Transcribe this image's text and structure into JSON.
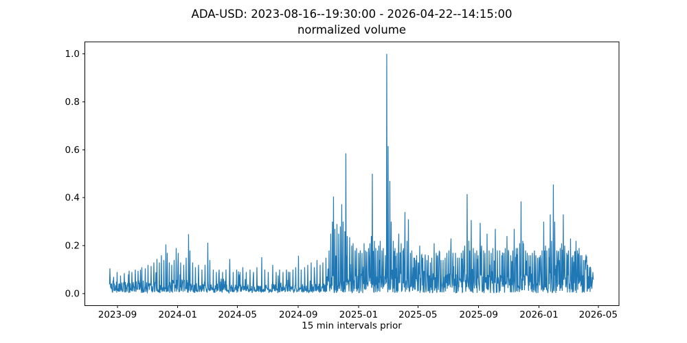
{
  "chart_data": {
    "type": "line",
    "title_line1": "ADA-USD: 2023-08-16--19:30:00 - 2026-04-22--14:15:00",
    "title_line2": "normalized volume",
    "xlabel": "15 min intervals prior",
    "ylabel": "",
    "series_name": "normalized volume",
    "series_color": "#1f77b4",
    "axis_color": "#000000",
    "legend": "none",
    "grid": false,
    "x_is_time": true,
    "x_start_date": "2023-08-16",
    "x_end_date": "2026-04-22",
    "x_unit": "days since 2023-08-16",
    "x_tick_labels": [
      "2023-09",
      "2024-01",
      "2024-05",
      "2024-09",
      "2025-01",
      "2025-05",
      "2025-09",
      "2026-01",
      "2026-05"
    ],
    "x_tick_days": [
      16,
      138,
      259,
      382,
      504,
      624,
      747,
      869,
      989
    ],
    "y_tick_labels": [
      "0.0",
      "0.2",
      "0.4",
      "0.6",
      "0.8",
      "1.0"
    ],
    "y_tick_values": [
      0,
      0.2,
      0.4,
      0.6,
      0.8,
      1.0
    ],
    "xlim_days": [
      -50,
      1031
    ],
    "ylim": [
      -0.05,
      1.05
    ],
    "data_span_days": [
      0,
      980
    ],
    "noise_seed": 20250422,
    "noise_regions": [
      {
        "from": 0,
        "to": 108,
        "base": 0.055,
        "peak": 0.11,
        "peak_p": 0.06,
        "pow": 1.7
      },
      {
        "from": 108,
        "to": 200,
        "base": 0.06,
        "peak": 0.13,
        "peak_p": 0.07,
        "pow": 1.7
      },
      {
        "from": 200,
        "to": 440,
        "base": 0.042,
        "peak": 0.095,
        "peak_p": 0.05,
        "pow": 1.8
      },
      {
        "from": 440,
        "to": 504,
        "base": 0.075,
        "peak": 0.17,
        "peak_p": 0.13,
        "pow": 1.3
      },
      {
        "from": 504,
        "to": 981,
        "base": 0.085,
        "peak": 0.19,
        "peak_p": 0.15,
        "pow": 1.25
      }
    ],
    "spikes_day_value": [
      [
        1,
        0.105
      ],
      [
        8,
        0.07
      ],
      [
        15,
        0.09
      ],
      [
        22,
        0.075
      ],
      [
        30,
        0.085
      ],
      [
        38,
        0.08
      ],
      [
        45,
        0.09
      ],
      [
        52,
        0.1
      ],
      [
        58,
        0.095
      ],
      [
        65,
        0.11
      ],
      [
        72,
        0.105
      ],
      [
        78,
        0.12
      ],
      [
        84,
        0.115
      ],
      [
        90,
        0.13
      ],
      [
        96,
        0.145
      ],
      [
        101,
        0.13
      ],
      [
        105,
        0.16
      ],
      [
        110,
        0.14
      ],
      [
        114,
        0.205
      ],
      [
        117,
        0.17
      ],
      [
        121,
        0.13
      ],
      [
        126,
        0.12
      ],
      [
        131,
        0.14
      ],
      [
        135,
        0.19
      ],
      [
        139,
        0.17
      ],
      [
        144,
        0.13
      ],
      [
        150,
        0.12
      ],
      [
        155,
        0.15
      ],
      [
        160,
        0.248
      ],
      [
        163,
        0.18
      ],
      [
        168,
        0.13
      ],
      [
        174,
        0.11
      ],
      [
        180,
        0.12
      ],
      [
        187,
        0.1
      ],
      [
        193,
        0.12
      ],
      [
        199,
        0.212
      ],
      [
        203,
        0.14
      ],
      [
        210,
        0.1
      ],
      [
        216,
        0.09
      ],
      [
        222,
        0.1
      ],
      [
        229,
        0.09
      ],
      [
        236,
        0.1
      ],
      [
        243,
        0.145
      ],
      [
        250,
        0.09
      ],
      [
        257,
        0.1
      ],
      [
        264,
        0.09
      ],
      [
        270,
        0.11
      ],
      [
        277,
        0.09
      ],
      [
        284,
        0.1
      ],
      [
        291,
        0.09
      ],
      [
        298,
        0.11
      ],
      [
        308,
        0.152
      ],
      [
        314,
        0.1
      ],
      [
        321,
        0.09
      ],
      [
        330,
        0.12
      ],
      [
        337,
        0.09
      ],
      [
        344,
        0.1
      ],
      [
        351,
        0.09
      ],
      [
        358,
        0.1
      ],
      [
        365,
        0.09
      ],
      [
        371,
        0.1
      ],
      [
        377,
        0.11
      ],
      [
        382,
        0.158
      ],
      [
        388,
        0.1
      ],
      [
        395,
        0.11
      ],
      [
        401,
        0.12
      ],
      [
        408,
        0.13
      ],
      [
        414,
        0.11
      ],
      [
        420,
        0.14
      ],
      [
        426,
        0.12
      ],
      [
        432,
        0.13
      ],
      [
        438,
        0.15
      ],
      [
        444,
        0.18
      ],
      [
        448,
        0.25
      ],
      [
        451,
        0.3
      ],
      [
        453,
        0.405
      ],
      [
        456,
        0.27
      ],
      [
        460,
        0.29
      ],
      [
        464,
        0.25
      ],
      [
        467,
        0.28
      ],
      [
        470,
        0.373
      ],
      [
        473,
        0.3
      ],
      [
        476,
        0.26
      ],
      [
        478,
        0.585
      ],
      [
        481,
        0.24
      ],
      [
        486,
        0.235
      ],
      [
        490,
        0.2
      ],
      [
        493,
        0.21
      ],
      [
        497,
        0.18
      ],
      [
        500,
        0.19
      ],
      [
        504,
        0.17
      ],
      [
        507,
        0.16
      ],
      [
        511,
        0.17
      ],
      [
        515,
        0.21
      ],
      [
        518,
        0.18
      ],
      [
        521,
        0.175
      ],
      [
        524,
        0.19
      ],
      [
        527,
        0.21
      ],
      [
        530,
        0.24
      ],
      [
        532,
        0.5
      ],
      [
        536,
        0.22
      ],
      [
        539,
        0.19
      ],
      [
        542,
        0.18
      ],
      [
        545,
        0.2
      ],
      [
        548,
        0.22
      ],
      [
        551,
        0.18
      ],
      [
        554,
        0.19
      ],
      [
        558,
        0.16
      ],
      [
        561,
        1.0
      ],
      [
        564,
        0.615
      ],
      [
        567,
        0.47
      ],
      [
        570,
        0.3
      ],
      [
        574,
        0.22
      ],
      [
        578,
        0.19
      ],
      [
        582,
        0.17
      ],
      [
        585,
        0.25
      ],
      [
        590,
        0.21
      ],
      [
        594,
        0.18
      ],
      [
        598,
        0.34
      ],
      [
        602,
        0.22
      ],
      [
        605,
        0.31
      ],
      [
        609,
        0.17
      ],
      [
        612,
        0.18
      ],
      [
        616,
        0.15
      ],
      [
        620,
        0.14
      ],
      [
        624,
        0.13
      ],
      [
        628,
        0.2
      ],
      [
        631,
        0.16
      ],
      [
        634,
        0.15
      ],
      [
        638,
        0.13
      ],
      [
        642,
        0.14
      ],
      [
        645,
        0.16
      ],
      [
        649,
        0.13
      ],
      [
        652,
        0.15
      ],
      [
        657,
        0.21
      ],
      [
        661,
        0.17
      ],
      [
        664,
        0.15
      ],
      [
        667,
        0.16
      ],
      [
        671,
        0.14
      ],
      [
        675,
        0.14
      ],
      [
        679,
        0.15
      ],
      [
        683,
        0.17
      ],
      [
        687,
        0.18
      ],
      [
        691,
        0.23
      ],
      [
        695,
        0.17
      ],
      [
        700,
        0.17
      ],
      [
        704,
        0.15
      ],
      [
        708,
        0.15
      ],
      [
        712,
        0.17
      ],
      [
        715,
        0.18
      ],
      [
        719,
        0.2
      ],
      [
        724,
        0.415
      ],
      [
        727,
        0.22
      ],
      [
        729,
        0.18
      ],
      [
        732,
        0.307
      ],
      [
        736,
        0.19
      ],
      [
        740,
        0.17
      ],
      [
        743,
        0.18
      ],
      [
        746,
        0.16
      ],
      [
        750,
        0.295
      ],
      [
        753,
        0.2
      ],
      [
        757,
        0.18
      ],
      [
        760,
        0.17
      ],
      [
        764,
        0.25
      ],
      [
        768,
        0.18
      ],
      [
        772,
        0.17
      ],
      [
        776,
        0.19
      ],
      [
        781,
        0.27
      ],
      [
        785,
        0.18
      ],
      [
        790,
        0.18
      ],
      [
        794,
        0.16
      ],
      [
        798,
        0.17
      ],
      [
        801,
        0.19
      ],
      [
        804,
        0.24
      ],
      [
        808,
        0.17
      ],
      [
        812,
        0.16
      ],
      [
        816,
        0.18
      ],
      [
        819,
        0.27
      ],
      [
        823,
        0.19
      ],
      [
        826,
        0.19
      ],
      [
        830,
        0.21
      ],
      [
        833,
        0.385
      ],
      [
        836,
        0.22
      ],
      [
        838,
        0.21
      ],
      [
        842,
        0.18
      ],
      [
        845,
        0.17
      ],
      [
        849,
        0.16
      ],
      [
        852,
        0.16
      ],
      [
        856,
        0.17
      ],
      [
        860,
        0.18
      ],
      [
        863,
        0.16
      ],
      [
        866,
        0.15
      ],
      [
        869,
        0.14
      ],
      [
        872,
        0.16
      ],
      [
        875,
        0.18
      ],
      [
        879,
        0.3
      ],
      [
        882,
        0.2
      ],
      [
        885,
        0.18
      ],
      [
        889,
        0.19
      ],
      [
        892,
        0.33
      ],
      [
        895,
        0.22
      ],
      [
        898,
        0.455
      ],
      [
        901,
        0.3
      ],
      [
        905,
        0.18
      ],
      [
        908,
        0.17
      ],
      [
        912,
        0.19
      ],
      [
        915,
        0.21
      ],
      [
        918,
        0.33
      ],
      [
        921,
        0.2
      ],
      [
        925,
        0.17
      ],
      [
        929,
        0.18
      ],
      [
        933,
        0.23
      ],
      [
        938,
        0.16
      ],
      [
        941,
        0.17
      ],
      [
        944,
        0.22
      ],
      [
        947,
        0.18
      ],
      [
        950,
        0.19
      ],
      [
        953,
        0.16
      ],
      [
        956,
        0.16
      ],
      [
        959,
        0.14
      ],
      [
        962,
        0.14
      ],
      [
        965,
        0.13
      ],
      [
        968,
        0.12
      ],
      [
        971,
        0.11
      ],
      [
        974,
        0.1
      ],
      [
        978,
        0.09
      ]
    ]
  }
}
